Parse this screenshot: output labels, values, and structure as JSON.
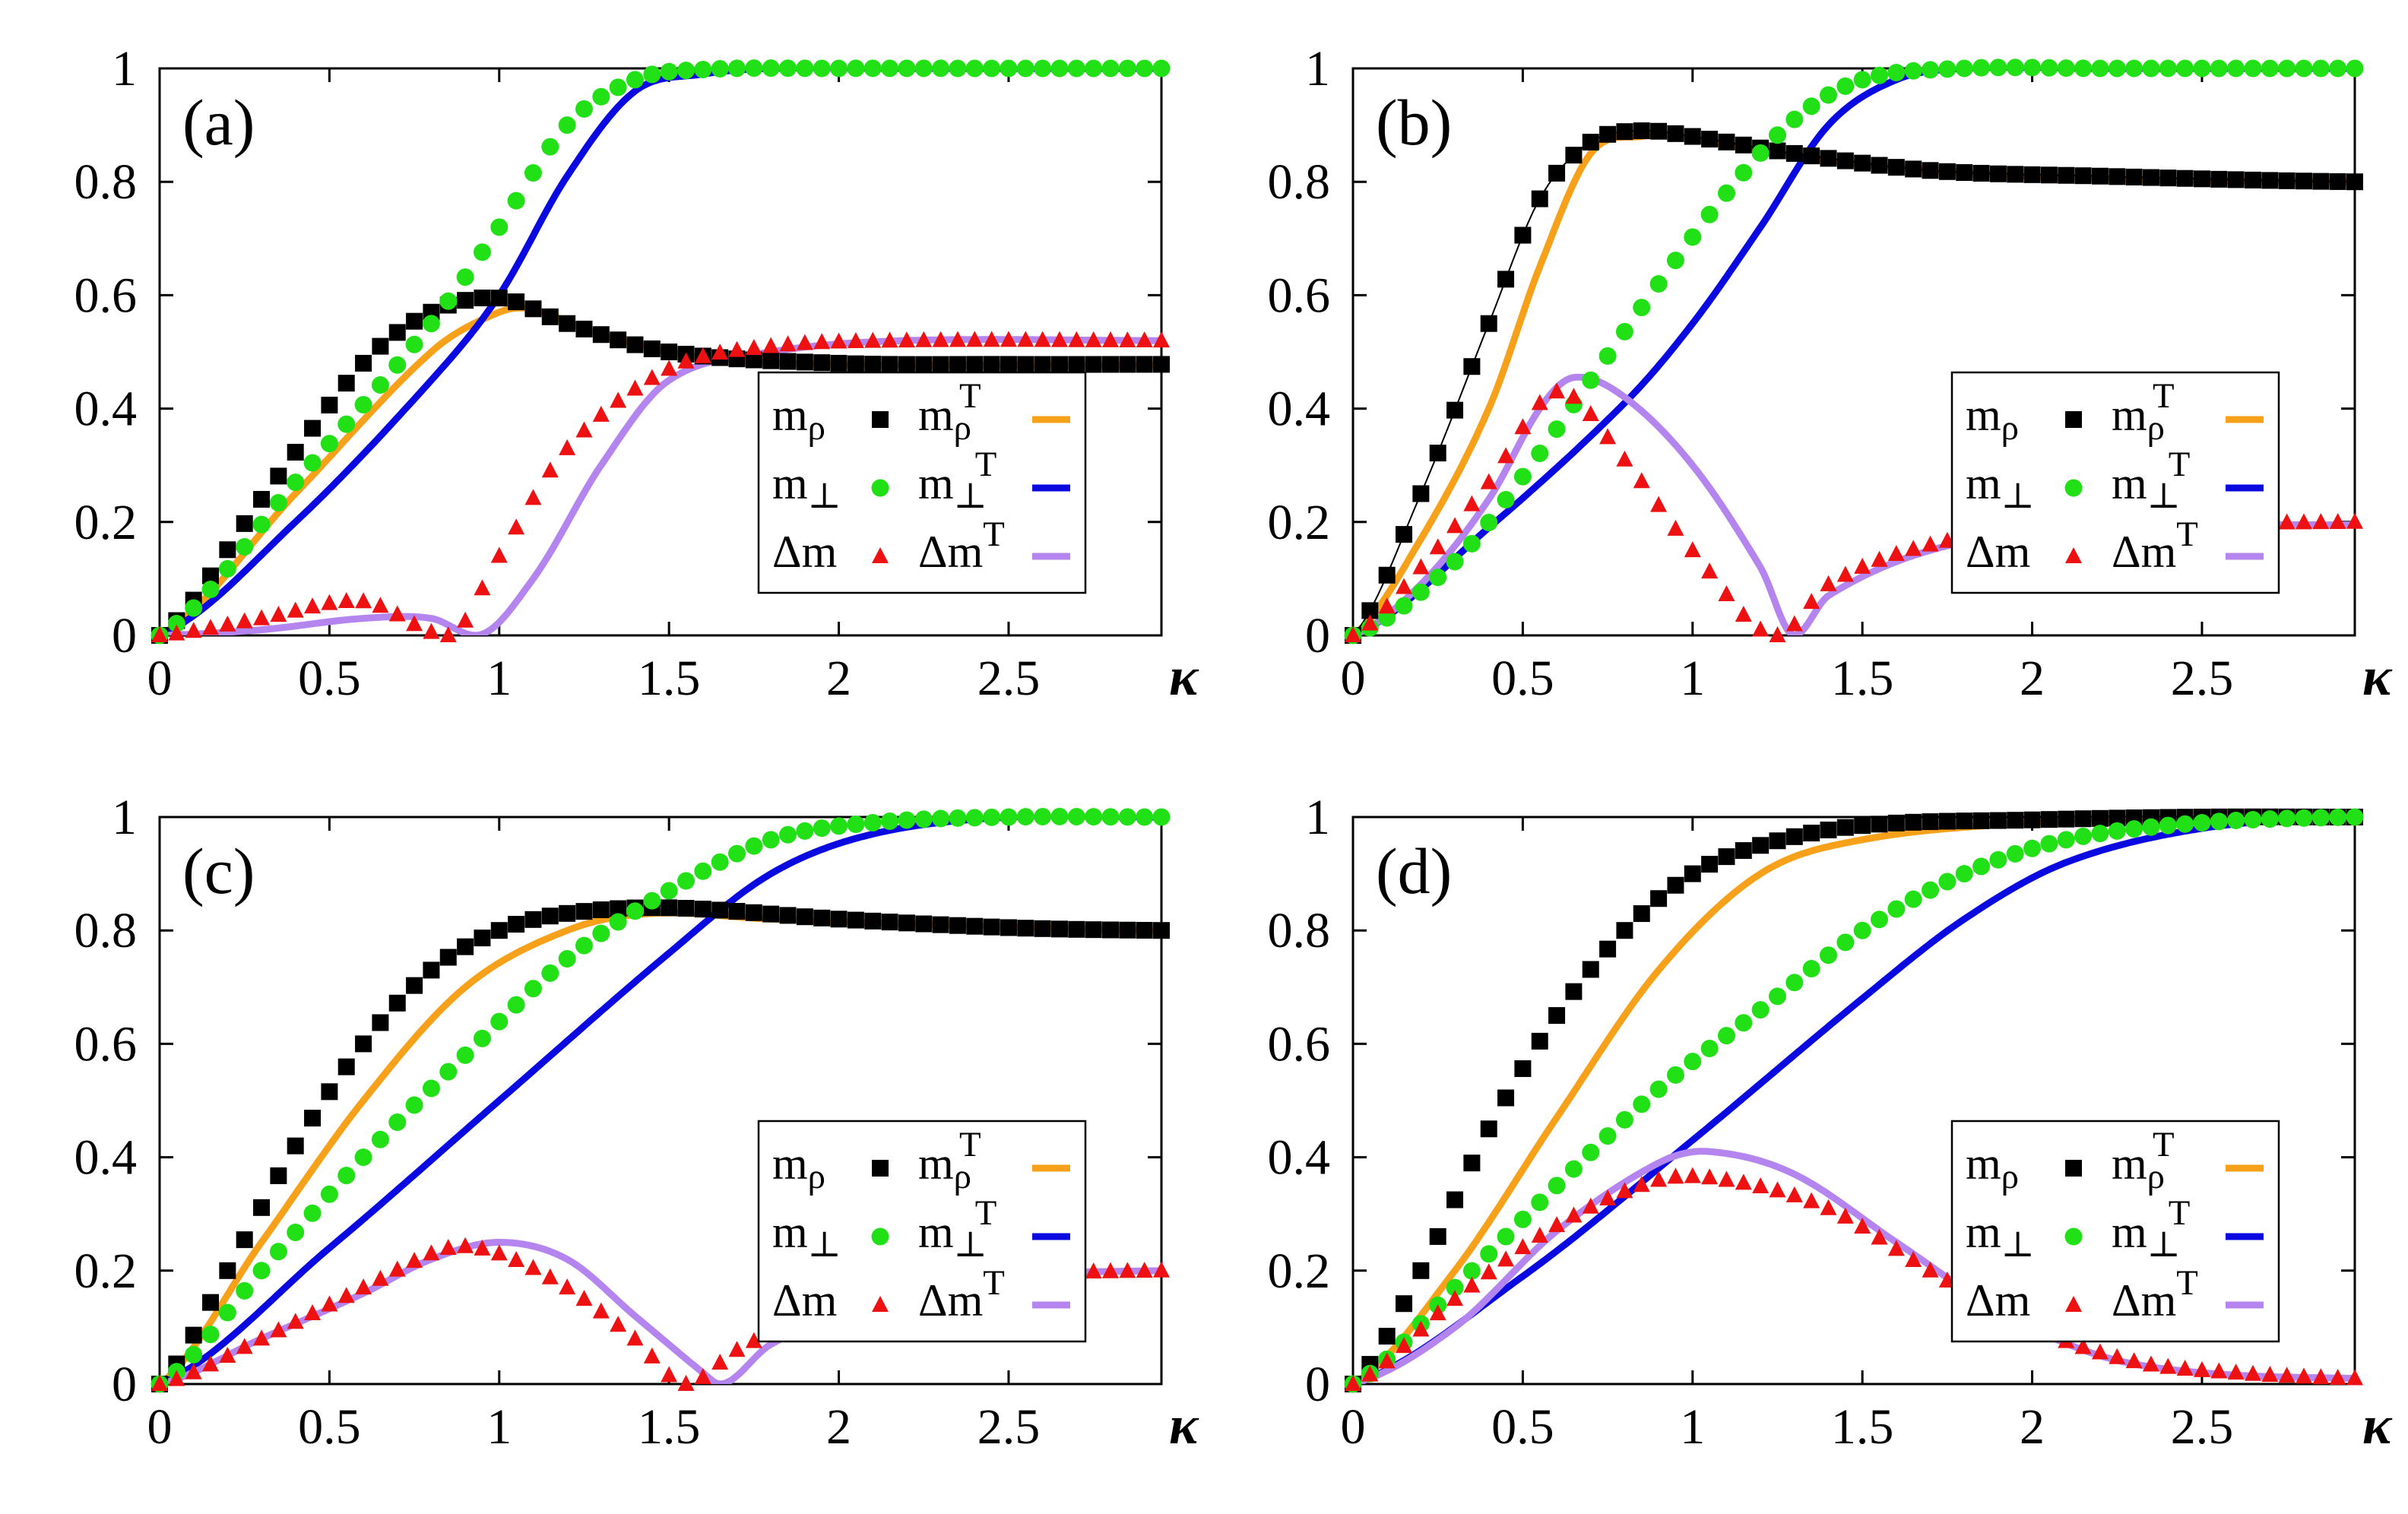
{
  "colors": {
    "m_rho": "#000000",
    "m_perp": "#22e016",
    "delta_m": "#ee1111",
    "m_rho_T": "#f7a11a",
    "m_perp_T": "#0a0ae0",
    "delta_m_T": "#b585ef",
    "axis": "#000000"
  },
  "legend_labels": {
    "m_rho": "m_ρ",
    "m_perp": "m_⊥",
    "delta_m": "Δm",
    "m_rho_T": "m_ρ^T",
    "m_perp_T": "m_⊥^T",
    "delta_m_T": "Δm^T"
  },
  "chart_data": [
    {
      "type": "line",
      "panel_label": "(a)",
      "xlabel": "κ",
      "xlim": [
        0,
        2.95
      ],
      "ylim": [
        0,
        1
      ],
      "xticks": [
        "0",
        "0.5",
        "1",
        "1.5",
        "2",
        "2.5"
      ],
      "yticks": [
        "0",
        "0.2",
        "0.4",
        "0.6",
        "0.8",
        "1"
      ],
      "grid": false,
      "legend_position": "center-right",
      "series": [
        {
          "name": "m_ρ",
          "kind": "markers",
          "marker": "square",
          "x": [
            0,
            0.3,
            0.6,
            0.8,
            1.0,
            1.2,
            1.5,
            2.0,
            2.5,
            2.95
          ],
          "y": [
            0,
            0.24,
            0.48,
            0.57,
            0.595,
            0.55,
            0.5,
            0.48,
            0.478,
            0.478
          ]
        },
        {
          "name": "m_⊥",
          "kind": "markers",
          "marker": "circle",
          "x": [
            0,
            0.4,
            0.8,
            1.0,
            1.2,
            1.4,
            1.6,
            2.0,
            2.5,
            2.95
          ],
          "y": [
            0,
            0.27,
            0.55,
            0.72,
            0.9,
            0.98,
            0.998,
            1.0,
            1.0,
            1.0
          ]
        },
        {
          "name": "Δm",
          "kind": "markers",
          "marker": "triangle",
          "x": [
            0,
            0.3,
            0.6,
            0.85,
            1.0,
            1.2,
            1.5,
            1.8,
            2.2,
            2.95
          ],
          "y": [
            0,
            0.03,
            0.06,
            0,
            0.14,
            0.33,
            0.47,
            0.51,
            0.52,
            0.52
          ]
        },
        {
          "name": "m_ρ^T",
          "kind": "line",
          "x": [
            0,
            0.4,
            0.8,
            1.0,
            1.1,
            1.3,
            1.6,
            2.0,
            2.5,
            2.95
          ],
          "y": [
            0,
            0.25,
            0.5,
            0.57,
            0.575,
            0.53,
            0.49,
            0.478,
            0.476,
            0.476
          ]
        },
        {
          "name": "m_⊥^T",
          "kind": "line",
          "x": [
            0,
            0.4,
            0.8,
            1.0,
            1.2,
            1.4,
            1.6,
            1.8,
            2.2,
            2.95
          ],
          "y": [
            0,
            0.2,
            0.45,
            0.6,
            0.81,
            0.96,
            0.99,
            1.0,
            1.0,
            1.0
          ]
        },
        {
          "name": "Δm^T",
          "kind": "line",
          "x": [
            0,
            0.3,
            0.6,
            0.8,
            0.93,
            1.1,
            1.3,
            1.5,
            1.8,
            2.2,
            2.95
          ],
          "y": [
            0,
            0.01,
            0.03,
            0.03,
            0,
            0.1,
            0.3,
            0.45,
            0.5,
            0.52,
            0.52
          ]
        }
      ]
    },
    {
      "type": "line",
      "panel_label": "(b)",
      "xlabel": "κ",
      "xlim": [
        0,
        2.95
      ],
      "ylim": [
        0,
        1
      ],
      "xticks": [
        "0",
        "0.5",
        "1",
        "1.5",
        "2",
        "2.5"
      ],
      "yticks": [
        "0",
        "0.2",
        "0.4",
        "0.6",
        "0.8",
        "1"
      ],
      "grid": false,
      "legend_position": "center-right",
      "series": [
        {
          "name": "m_ρ",
          "kind": "markers",
          "marker": "square",
          "x": [
            0,
            0.2,
            0.4,
            0.55,
            0.7,
            0.85,
            1.0,
            1.3,
            1.7,
            2.2,
            2.95
          ],
          "y": [
            0,
            0.25,
            0.55,
            0.77,
            0.87,
            0.89,
            0.88,
            0.85,
            0.82,
            0.81,
            0.8
          ]
        },
        {
          "name": "m_⊥",
          "kind": "markers",
          "marker": "circle",
          "x": [
            0,
            0.3,
            0.5,
            0.7,
            0.9,
            1.1,
            1.3,
            1.5,
            1.8,
            2.2,
            2.95
          ],
          "y": [
            0,
            0.13,
            0.28,
            0.45,
            0.62,
            0.78,
            0.91,
            0.98,
            1.0,
            1.0,
            1.0
          ]
        },
        {
          "name": "Δm",
          "kind": "markers",
          "marker": "triangle",
          "x": [
            0,
            0.2,
            0.4,
            0.6,
            0.8,
            1.0,
            1.25,
            1.4,
            1.7,
            2.1,
            2.95
          ],
          "y": [
            0,
            0.12,
            0.27,
            0.43,
            0.31,
            0.15,
            0,
            0.09,
            0.16,
            0.19,
            0.2
          ]
        },
        {
          "name": "m_ρ^T",
          "kind": "line",
          "x": [
            0,
            0.2,
            0.4,
            0.55,
            0.7,
            0.85,
            1.0,
            1.3,
            1.7,
            2.2,
            2.95
          ],
          "y": [
            0,
            0.17,
            0.4,
            0.65,
            0.85,
            0.88,
            0.875,
            0.845,
            0.82,
            0.805,
            0.8
          ]
        },
        {
          "name": "m_⊥^T",
          "kind": "line",
          "x": [
            0,
            0.4,
            0.8,
            1.0,
            1.2,
            1.4,
            1.6,
            1.8,
            2.2,
            2.95
          ],
          "y": [
            0,
            0.19,
            0.41,
            0.55,
            0.72,
            0.9,
            0.98,
            1.0,
            1.0,
            1.0
          ]
        },
        {
          "name": "Δm^T",
          "kind": "line",
          "x": [
            0,
            0.2,
            0.4,
            0.55,
            0.65,
            0.8,
            1.0,
            1.2,
            1.3,
            1.4,
            1.7,
            2.1,
            2.95
          ],
          "y": [
            0,
            0.09,
            0.24,
            0.4,
            0.455,
            0.42,
            0.3,
            0.12,
            0,
            0.07,
            0.15,
            0.19,
            0.195
          ]
        }
      ]
    },
    {
      "type": "line",
      "panel_label": "(c)",
      "xlabel": "κ",
      "xlim": [
        0,
        2.95
      ],
      "ylim": [
        0,
        1
      ],
      "xticks": [
        "0",
        "0.5",
        "1",
        "1.5",
        "2",
        "2.5"
      ],
      "yticks": [
        "0",
        "0.2",
        "0.4",
        "0.6",
        "0.8",
        "1"
      ],
      "grid": false,
      "legend_position": "center-right",
      "series": [
        {
          "name": "m_ρ",
          "kind": "markers",
          "marker": "square",
          "x": [
            0,
            0.2,
            0.4,
            0.6,
            0.8,
            1.0,
            1.2,
            1.5,
            2.0,
            2.5,
            2.95
          ],
          "y": [
            0,
            0.2,
            0.42,
            0.6,
            0.73,
            0.8,
            0.83,
            0.84,
            0.82,
            0.805,
            0.8
          ]
        },
        {
          "name": "m_⊥",
          "kind": "markers",
          "marker": "circle",
          "x": [
            0,
            0.3,
            0.6,
            0.9,
            1.2,
            1.5,
            1.8,
            2.1,
            2.5,
            2.95
          ],
          "y": [
            0,
            0.2,
            0.4,
            0.58,
            0.75,
            0.87,
            0.96,
            0.99,
            1.0,
            1.0
          ]
        },
        {
          "name": "Δm",
          "kind": "markers",
          "marker": "triangle",
          "x": [
            0,
            0.3,
            0.6,
            0.85,
            1.0,
            1.2,
            1.4,
            1.55,
            1.7,
            2.0,
            2.5,
            2.95
          ],
          "y": [
            0,
            0.08,
            0.17,
            0.24,
            0.23,
            0.17,
            0.08,
            0,
            0.06,
            0.14,
            0.19,
            0.2
          ]
        },
        {
          "name": "m_ρ^T",
          "kind": "line",
          "x": [
            0,
            0.3,
            0.6,
            0.9,
            1.2,
            1.45,
            1.8,
            2.3,
            2.95
          ],
          "y": [
            0,
            0.25,
            0.5,
            0.7,
            0.8,
            0.83,
            0.82,
            0.81,
            0.8
          ]
        },
        {
          "name": "m_⊥^T",
          "kind": "line",
          "x": [
            0,
            0.5,
            1.0,
            1.5,
            1.8,
            2.1,
            2.5,
            2.95
          ],
          "y": [
            0,
            0.24,
            0.5,
            0.76,
            0.9,
            0.97,
            1.0,
            1.0
          ]
        },
        {
          "name": "Δm^T",
          "kind": "line",
          "x": [
            0,
            0.3,
            0.6,
            0.8,
            1.0,
            1.2,
            1.4,
            1.6,
            1.65,
            1.8,
            2.1,
            2.5,
            2.95
          ],
          "y": [
            0,
            0.08,
            0.16,
            0.22,
            0.25,
            0.22,
            0.12,
            0.02,
            0,
            0.07,
            0.15,
            0.19,
            0.2
          ]
        }
      ]
    },
    {
      "type": "line",
      "panel_label": "(d)",
      "xlabel": "κ",
      "xlim": [
        0,
        2.95
      ],
      "ylim": [
        0,
        1
      ],
      "xticks": [
        "0",
        "0.5",
        "1",
        "1.5",
        "2",
        "2.5"
      ],
      "yticks": [
        "0",
        "0.2",
        "0.4",
        "0.6",
        "0.8",
        "1"
      ],
      "grid": false,
      "legend_position": "center-right",
      "series": [
        {
          "name": "m_ρ",
          "kind": "markers",
          "marker": "square",
          "x": [
            0,
            0.2,
            0.4,
            0.6,
            0.8,
            1.0,
            1.2,
            1.5,
            2.0,
            2.5,
            2.95
          ],
          "y": [
            0,
            0.2,
            0.45,
            0.65,
            0.8,
            0.9,
            0.95,
            0.985,
            0.995,
            1.0,
            1.0
          ]
        },
        {
          "name": "m_⊥",
          "kind": "markers",
          "marker": "circle",
          "x": [
            0,
            0.3,
            0.6,
            0.9,
            1.2,
            1.5,
            1.8,
            2.1,
            2.5,
            2.95
          ],
          "y": [
            0,
            0.17,
            0.35,
            0.52,
            0.66,
            0.8,
            0.9,
            0.96,
            0.99,
            1.0
          ]
        },
        {
          "name": "Δm",
          "kind": "markers",
          "marker": "triangle",
          "x": [
            0,
            0.3,
            0.6,
            0.9,
            1.1,
            1.4,
            1.7,
            2.0,
            2.3,
            2.6,
            2.95
          ],
          "y": [
            0,
            0.15,
            0.28,
            0.36,
            0.36,
            0.31,
            0.2,
            0.1,
            0.04,
            0.02,
            0.01
          ]
        },
        {
          "name": "m_ρ^T",
          "kind": "line",
          "x": [
            0,
            0.3,
            0.6,
            0.9,
            1.2,
            1.5,
            2.0,
            2.5,
            2.95
          ],
          "y": [
            0,
            0.2,
            0.47,
            0.73,
            0.9,
            0.96,
            0.99,
            1.0,
            1.0
          ]
        },
        {
          "name": "m_⊥^T",
          "kind": "line",
          "x": [
            0,
            0.5,
            1.0,
            1.5,
            1.8,
            2.1,
            2.5,
            2.95
          ],
          "y": [
            0,
            0.19,
            0.43,
            0.68,
            0.82,
            0.92,
            0.98,
            1.0
          ]
        },
        {
          "name": "Δm^T",
          "kind": "line",
          "x": [
            0,
            0.3,
            0.6,
            0.9,
            1.05,
            1.3,
            1.6,
            1.9,
            2.2,
            2.5,
            2.95
          ],
          "y": [
            0,
            0.1,
            0.27,
            0.39,
            0.41,
            0.37,
            0.25,
            0.13,
            0.05,
            0.02,
            0.01
          ]
        }
      ]
    }
  ]
}
